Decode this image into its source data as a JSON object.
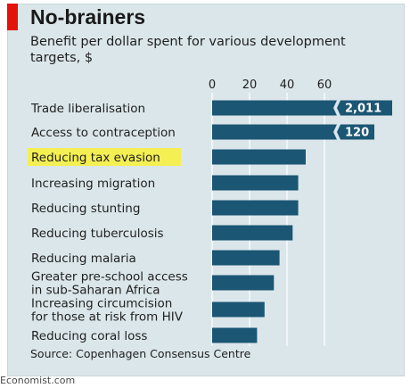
{
  "chart_data": {
    "type": "bar",
    "orientation": "horizontal",
    "title": "No-brainers",
    "subtitle": "Benefit per dollar spent for various development targets, $",
    "source": "Source: Copenhagen Consensus Centre",
    "xlim": [
      0,
      60
    ],
    "ticks": [
      "0",
      "20",
      "40",
      "60"
    ],
    "categories": [
      [
        "Trade liberalisation"
      ],
      [
        "Access to contraception"
      ],
      [
        "Reducing tax evasion"
      ],
      [
        "Increasing migration"
      ],
      [
        "Reducing stunting"
      ],
      [
        "Reducing tuberculosis"
      ],
      [
        "Reducing malaria"
      ],
      [
        "Greater pre-school access",
        "in sub-Saharan Africa"
      ],
      [
        "Increasing circumcision",
        "for those at risk from HIV"
      ],
      [
        "Reducing coral loss"
      ]
    ],
    "values": [
      2011,
      120,
      50,
      46,
      46,
      43,
      36,
      33,
      28,
      24
    ],
    "value_labels": [
      "2,011",
      "120",
      "",
      "",
      "",
      "",
      "",
      "",
      "",
      ""
    ],
    "highlighted_category": "Reducing tax evasion",
    "colors": {
      "bar": "#1b5674",
      "grid": "#ffffff",
      "highlight": "#f4ef52",
      "panel": "#dbe6ea",
      "accent": "#e3120b"
    }
  },
  "footer": "Economist.com"
}
